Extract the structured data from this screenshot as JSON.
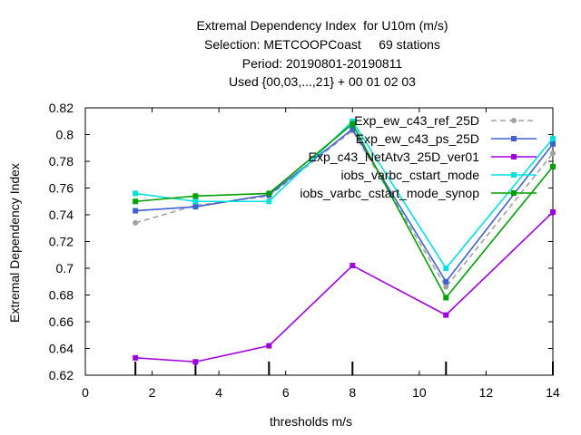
{
  "chart_data": {
    "type": "line",
    "title_lines": [
      "Extremal Dependency Index  for U10m (m/s)",
      "Selection: METCOOPCoast     69 stations",
      "Period: 20190801-20190811",
      "Used {00,03,...,21} + 00 01 02 03"
    ],
    "xlabel": "thresholds m/s",
    "ylabel": "Extremal Dependency Index",
    "xlim": [
      0,
      14
    ],
    "ylim": [
      0.62,
      0.82
    ],
    "xticks": [
      "0",
      "2",
      "4",
      "6",
      "8",
      "10",
      "12",
      "14"
    ],
    "yticks": [
      "0.62",
      "0.64",
      "0.66",
      "0.68",
      "0.7",
      "0.72",
      "0.74",
      "0.76",
      "0.78",
      "0.8",
      "0.82"
    ],
    "sample_ticks_x": [
      1.5,
      3.3,
      5.5,
      8,
      10.8,
      14
    ],
    "legend_position": "top-right",
    "grid": false,
    "x": [
      1.5,
      3.3,
      5.5,
      8.0,
      10.8,
      14.0
    ],
    "series": [
      {
        "name": "Exp_ew_c43_ref_25D",
        "color": "#a0a0a0",
        "dash": true,
        "marker": "circle",
        "values": [
          0.734,
          0.747,
          0.754,
          0.803,
          0.686,
          0.786
        ]
      },
      {
        "name": "Exp_ew_c43_ps_25D",
        "color": "#4060d0",
        "dash": false,
        "marker": "square",
        "values": [
          0.743,
          0.746,
          0.755,
          0.804,
          0.69,
          0.793
        ]
      },
      {
        "name": "Exp_c43_NetAtv3_25D_ver01",
        "color": "#a000e0",
        "dash": false,
        "marker": "square",
        "values": [
          0.633,
          0.63,
          0.642,
          0.702,
          0.665,
          0.742
        ]
      },
      {
        "name": "iobs_varbc_cstart_mode",
        "color": "#00e0e0",
        "dash": false,
        "marker": "square",
        "values": [
          0.756,
          0.75,
          0.75,
          0.81,
          0.7,
          0.797
        ]
      },
      {
        "name": "iobs_varbc_cstart_mode_synop",
        "color": "#00a000",
        "dash": false,
        "marker": "square",
        "values": [
          0.75,
          0.754,
          0.756,
          0.808,
          0.678,
          0.776
        ]
      }
    ]
  }
}
